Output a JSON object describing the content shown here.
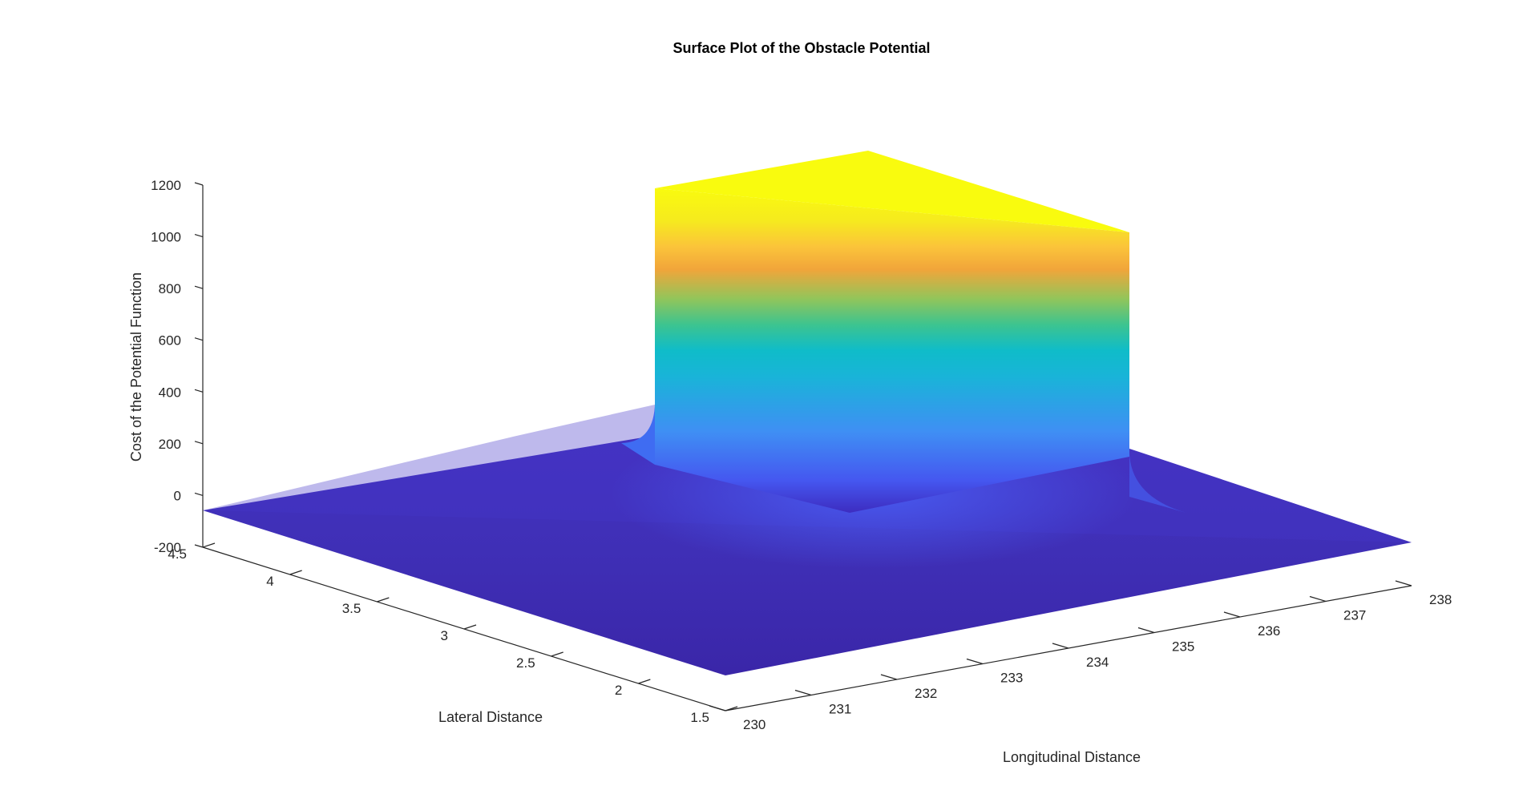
{
  "chart_data": {
    "type": "surface",
    "title": "Surface Plot of the Obstacle Potential",
    "xlabel": "Longitudinal Distance",
    "ylabel": "Lateral Distance",
    "zlabel": "Cost of the Potential Function",
    "xlim": [
      230,
      238
    ],
    "ylim": [
      1.5,
      4.5
    ],
    "zlim": [
      -200,
      1200
    ],
    "x_ticks": [
      "230",
      "231",
      "232",
      "233",
      "234",
      "235",
      "236",
      "237",
      "238"
    ],
    "y_ticks": [
      "1.5",
      "2",
      "2.5",
      "3",
      "3.5",
      "4",
      "4.5"
    ],
    "z_ticks": [
      "-200",
      "0",
      "200",
      "400",
      "600",
      "800",
      "1000",
      "1200"
    ],
    "surface": {
      "description_values": "potential is ~0 outside the obstacle and saturates near 1200 inside it",
      "baseline_value": 0,
      "plateau_value": 1200,
      "obstacle_x_range": [
        233,
        236
      ],
      "obstacle_y_range": [
        2.5,
        3.6
      ]
    },
    "colormap": "parula",
    "grid": false
  }
}
